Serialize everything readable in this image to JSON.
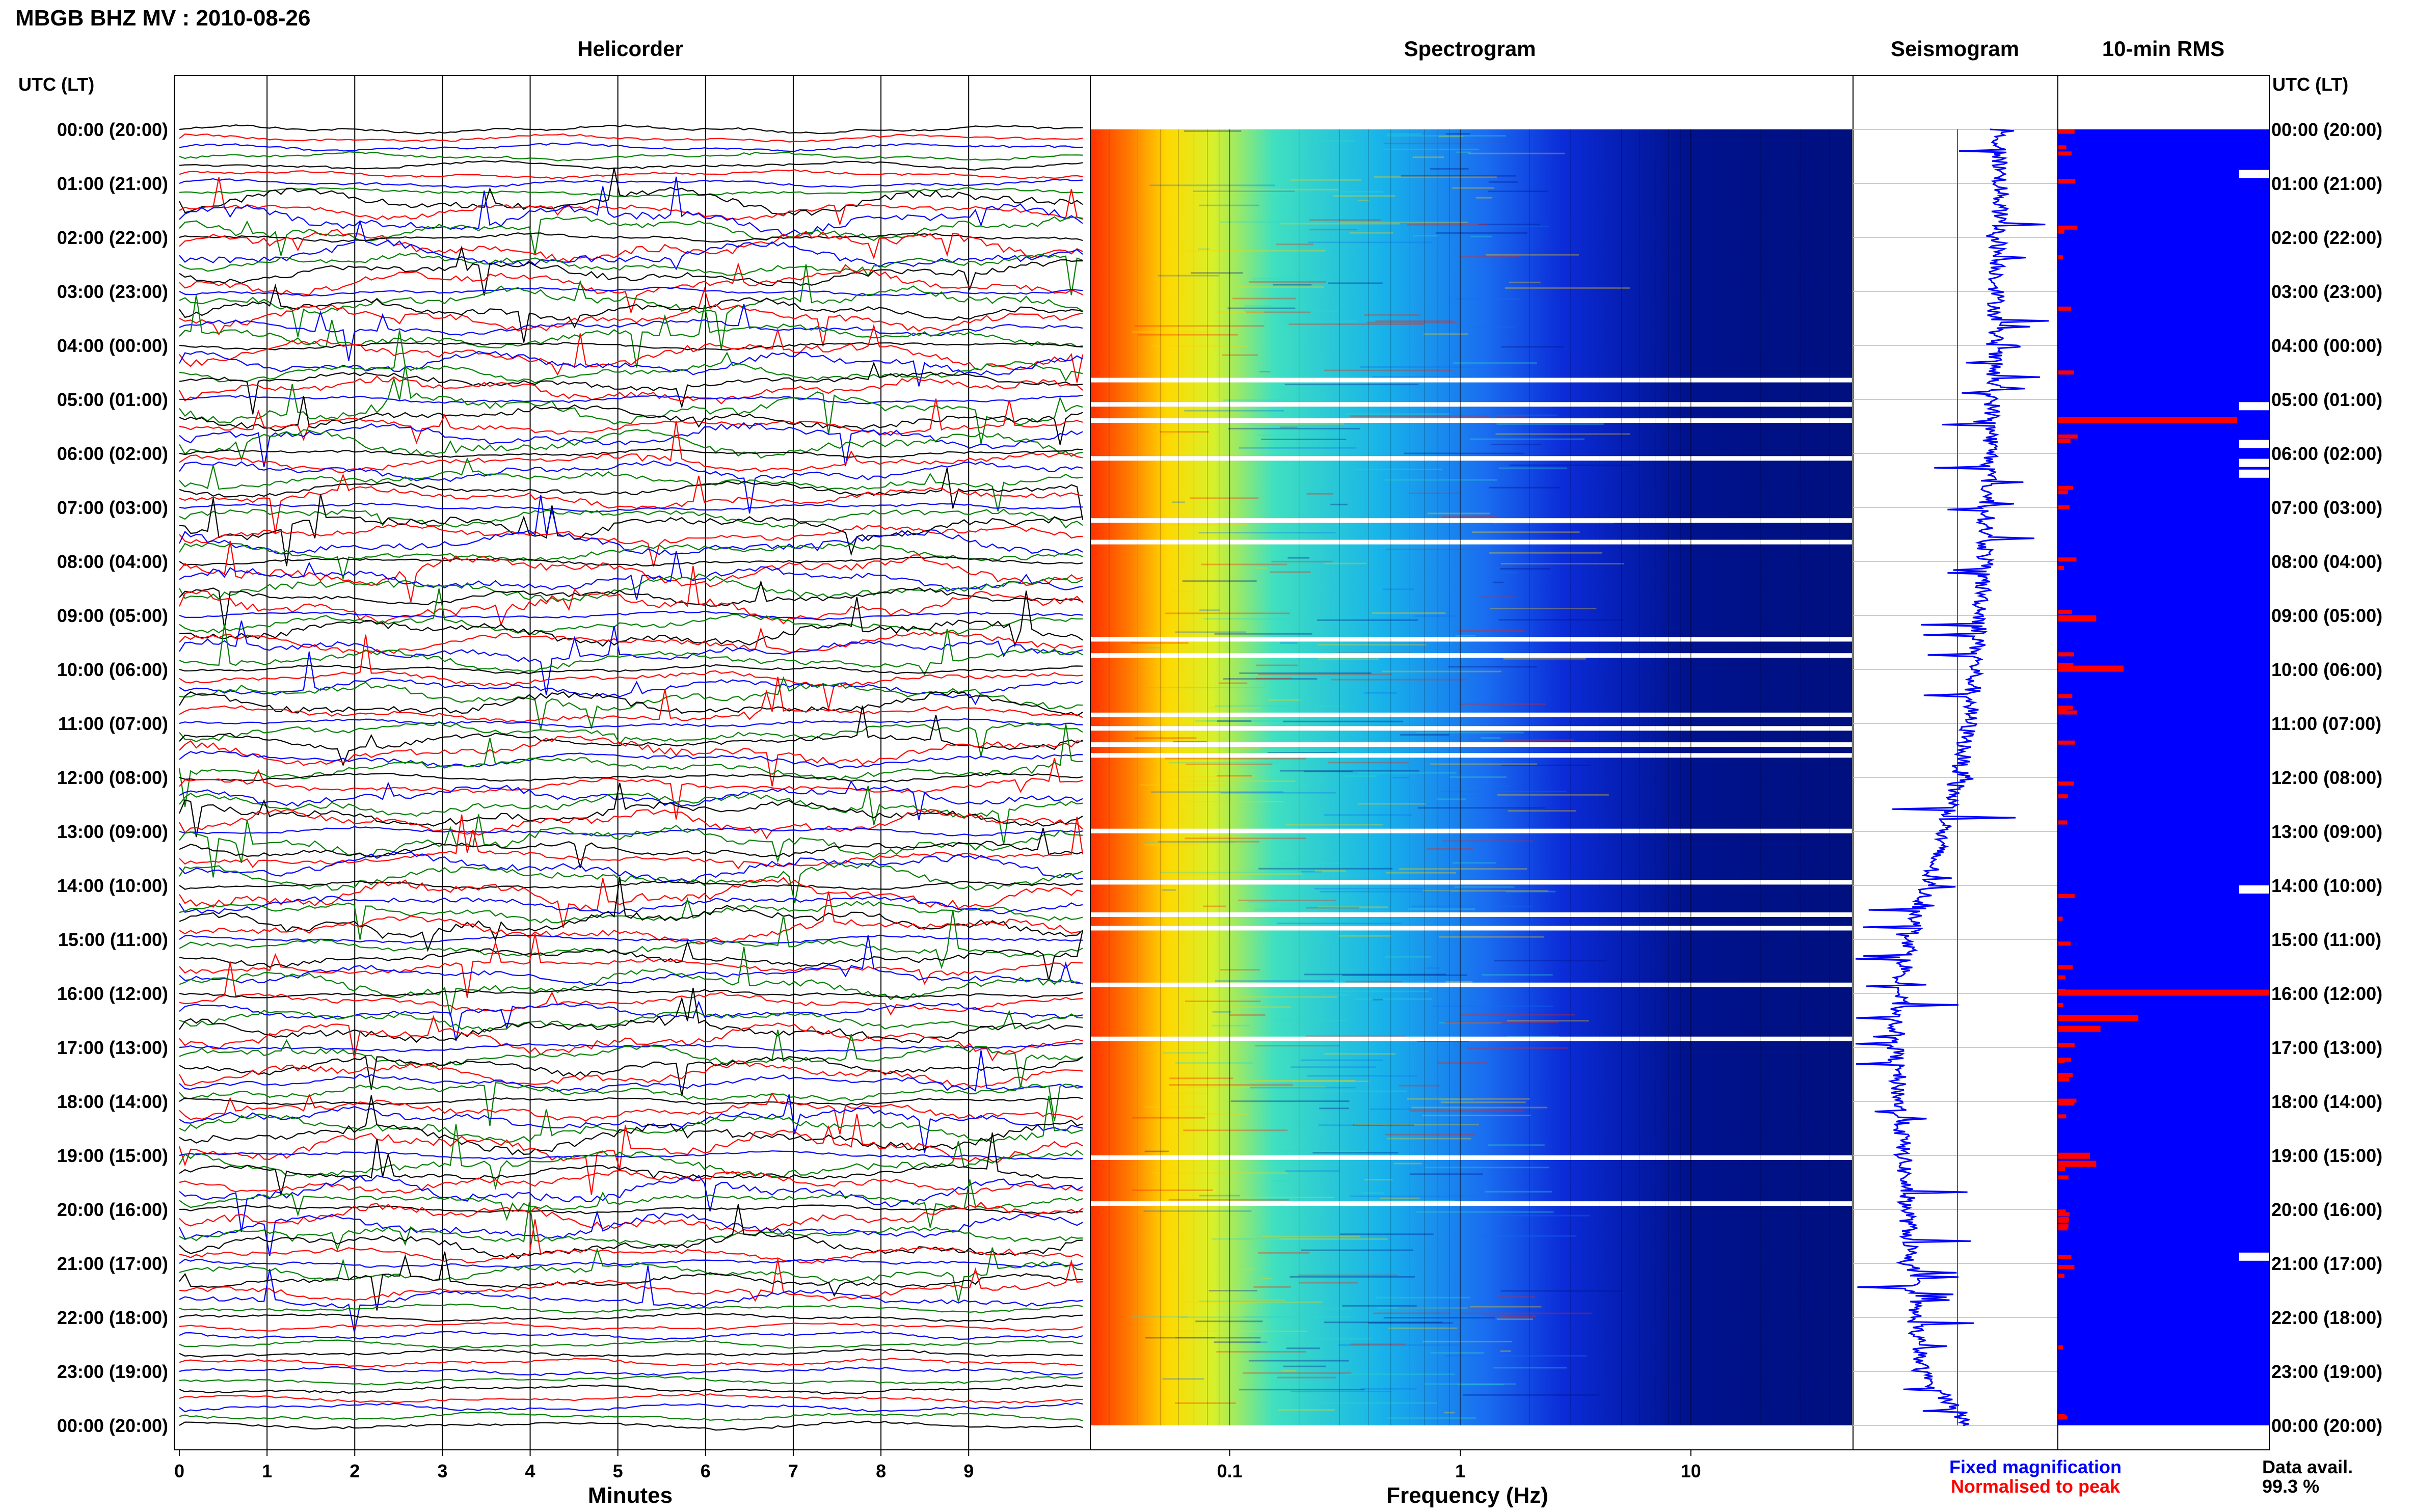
{
  "header": {
    "station": "MBGB BHZ MV : 2010-08-26",
    "utc_label_left": "UTC (LT)",
    "utc_label_right": "UTC (LT)"
  },
  "panels": {
    "helicorder": "Helicorder",
    "spectrogram": "Spectrogram",
    "seismogram": "Seismogram",
    "rms": "10-min RMS"
  },
  "axes": {
    "minutes_label": "Minutes",
    "frequency_label": "Frequency (Hz)",
    "minute_ticks": [
      "0",
      "1",
      "2",
      "3",
      "4",
      "5",
      "6",
      "7",
      "8",
      "9"
    ],
    "freq_ticks": [
      "0.1",
      "1",
      "10"
    ]
  },
  "time_labels": [
    "00:00 (20:00)",
    "01:00 (21:00)",
    "02:00 (22:00)",
    "03:00 (23:00)",
    "04:00 (00:00)",
    "05:00 (01:00)",
    "06:00 (02:00)",
    "07:00 (03:00)",
    "08:00 (04:00)",
    "09:00 (05:00)",
    "10:00 (06:00)",
    "11:00 (07:00)",
    "12:00 (08:00)",
    "13:00 (09:00)",
    "14:00 (10:00)",
    "15:00 (11:00)",
    "16:00 (12:00)",
    "17:00 (13:00)",
    "18:00 (14:00)",
    "19:00 (15:00)",
    "20:00 (16:00)",
    "21:00 (17:00)",
    "22:00 (18:00)",
    "23:00 (19:00)",
    "00:00 (20:00)"
  ],
  "legend": {
    "fixed": "Fixed magnification",
    "normalised": "Normalised to peak",
    "avail_label": "Data avail.",
    "avail_value": "99.3 %",
    "fixed_color": "#0000ff",
    "normalised_color": "#ff0000"
  },
  "chart_data": {
    "type": "heatmap",
    "title": "MBGB BHZ MV : 2010-08-26",
    "helicorder": {
      "xlabel": "Minutes",
      "xlim": [
        0,
        10
      ],
      "rows_per_hour": 6,
      "trace_colors": [
        "#000000",
        "#ff0000",
        "#0000ff",
        "#008000"
      ]
    },
    "spectrogram": {
      "xlabel": "Frequency (Hz)",
      "xscale": "log",
      "xlim": [
        0.025,
        50
      ],
      "gap_hours": [
        4.6,
        5.05,
        5.35,
        6.05,
        7.2,
        7.6,
        9.4,
        9.7,
        10.8,
        11.05,
        11.35,
        11.55,
        12.95,
        13.9,
        14.5,
        14.75,
        15.8,
        16.8,
        19.0,
        19.85
      ]
    },
    "seismogram": {
      "series": [
        {
          "name": "Fixed magnification",
          "color": "#0000ff",
          "hours": [
            0,
            1,
            2,
            3,
            4,
            5,
            6,
            7,
            8,
            9,
            10,
            11,
            12,
            13,
            14,
            15,
            16,
            17,
            18,
            19,
            20,
            21,
            22,
            23,
            24
          ],
          "baseline_offset": [
            0.72,
            0.73,
            0.72,
            0.71,
            0.7,
            0.69,
            0.68,
            0.66,
            0.65,
            0.63,
            0.6,
            0.57,
            0.52,
            0.44,
            0.36,
            0.28,
            0.22,
            0.2,
            0.22,
            0.24,
            0.26,
            0.28,
            0.3,
            0.33,
            0.58
          ]
        },
        {
          "name": "Normalised to peak",
          "color": "#ff0000"
        }
      ]
    },
    "rms": {
      "interval_minutes": 10,
      "spikes": [
        {
          "hour": 5.33,
          "value": 0.85
        },
        {
          "hour": 9.0,
          "value": 0.18
        },
        {
          "hour": 9.93,
          "value": 0.31
        },
        {
          "hour": 15.93,
          "value": 1.0
        },
        {
          "hour": 16.4,
          "value": 0.38
        },
        {
          "hour": 16.6,
          "value": 0.2
        },
        {
          "hour": 18.95,
          "value": 0.15
        },
        {
          "hour": 19.1,
          "value": 0.18
        }
      ],
      "gap_hours": [
        0.75,
        5.05,
        5.75,
        6.1,
        6.3,
        14.0,
        20.8
      ]
    },
    "data_availability_percent": 99.3
  }
}
